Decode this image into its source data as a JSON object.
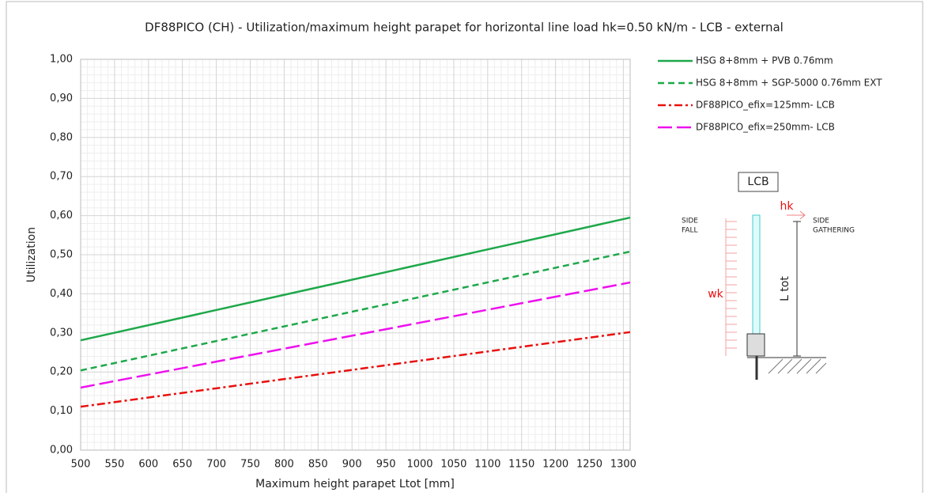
{
  "chart_data": {
    "type": "line",
    "title": "DF88PICO (CH) - Utilization/maximum height parapet for horizontal line load hk=0.50 kN/m - LCB - external",
    "x_label": "Maximum height parapet Ltot [mm]",
    "y_label": "Utilization",
    "x": [
      500,
      1310
    ],
    "series": [
      {
        "name": "HSG 8+8mm + PVB 0.76mm",
        "color": "#1ea84a",
        "dash": "solid",
        "values": [
          0.281,
          0.595
        ]
      },
      {
        "name": "HSG 8+8mm + SGP-5000 0.76mm EXT",
        "color": "#1ea84a",
        "dash": "dashed",
        "values": [
          0.204,
          0.508
        ]
      },
      {
        "name": "DF88PICO_efix=125mm- LCB",
        "color": "#e8100e",
        "dash": "dashdot",
        "values": [
          0.111,
          0.302
        ]
      },
      {
        "name": "DF88PICO_efix=250mm- LCB",
        "color": "#ee10ee",
        "dash": "longdash",
        "values": [
          0.16,
          0.429
        ]
      }
    ],
    "xlim": [
      500,
      1310
    ],
    "xticks": [
      500,
      550,
      600,
      650,
      700,
      750,
      800,
      850,
      900,
      950,
      1000,
      1050,
      1100,
      1150,
      1200,
      1250,
      1300
    ],
    "ylim": [
      0,
      1
    ],
    "yticks": [
      {
        "value": 0,
        "label": "0,00"
      },
      {
        "value": 0.1,
        "label": "0,10"
      },
      {
        "value": 0.2,
        "label": "0,20"
      },
      {
        "value": 0.3,
        "label": "0,30"
      },
      {
        "value": 0.4,
        "label": "0,40"
      },
      {
        "value": 0.5,
        "label": "0,50"
      },
      {
        "value": 0.6,
        "label": "0,60"
      },
      {
        "value": 0.7,
        "label": "0,70"
      },
      {
        "value": 0.8,
        "label": "0,80"
      },
      {
        "value": 0.9,
        "label": "0,90"
      },
      {
        "value": 1,
        "label": "1,00"
      }
    ],
    "grid": true,
    "legend": "right",
    "annotations": {
      "box": "LCB",
      "hk": "hk",
      "wk": "wk",
      "side_fall": [
        "SIDE",
        "FALL"
      ],
      "side_gathering": [
        "SIDE",
        "GATHERING"
      ],
      "ltot": "L tot"
    }
  }
}
